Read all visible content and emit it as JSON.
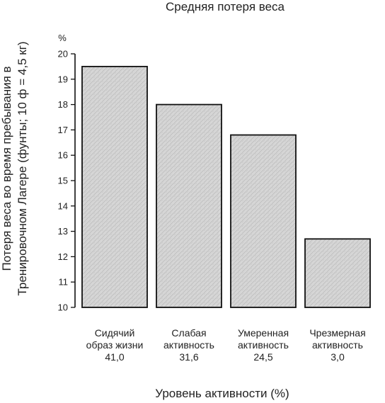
{
  "chart_data": {
    "type": "bar",
    "title": "Средняя потеря веса",
    "xlabel": "Уровень активности (%)",
    "ylabel_line1": "Потеря веса во время пребывания в",
    "ylabel_line2": "Тренировочном Лагере (фунты; 10 ф = 4,5 кг)",
    "y_unit": "%",
    "ylim": [
      10,
      20
    ],
    "yticks": [
      "10",
      "11",
      "12",
      "13",
      "14",
      "15",
      "16",
      "17",
      "18",
      "19",
      "20"
    ],
    "categories": [
      {
        "line1": "Сидячий",
        "line2": "образ жизни",
        "share": "41,0"
      },
      {
        "line1": "Слабая",
        "line2": "активность",
        "share": "31,6"
      },
      {
        "line1": "Умеренная",
        "line2": "активность",
        "share": "24,5"
      },
      {
        "line1": "Чрезмерная",
        "line2": "активность",
        "share": "3,0"
      }
    ],
    "values": [
      19.5,
      18.0,
      16.8,
      12.7
    ],
    "grid": false,
    "bar_color": "#d3d3d3",
    "bar_edge_color": "#111111"
  }
}
